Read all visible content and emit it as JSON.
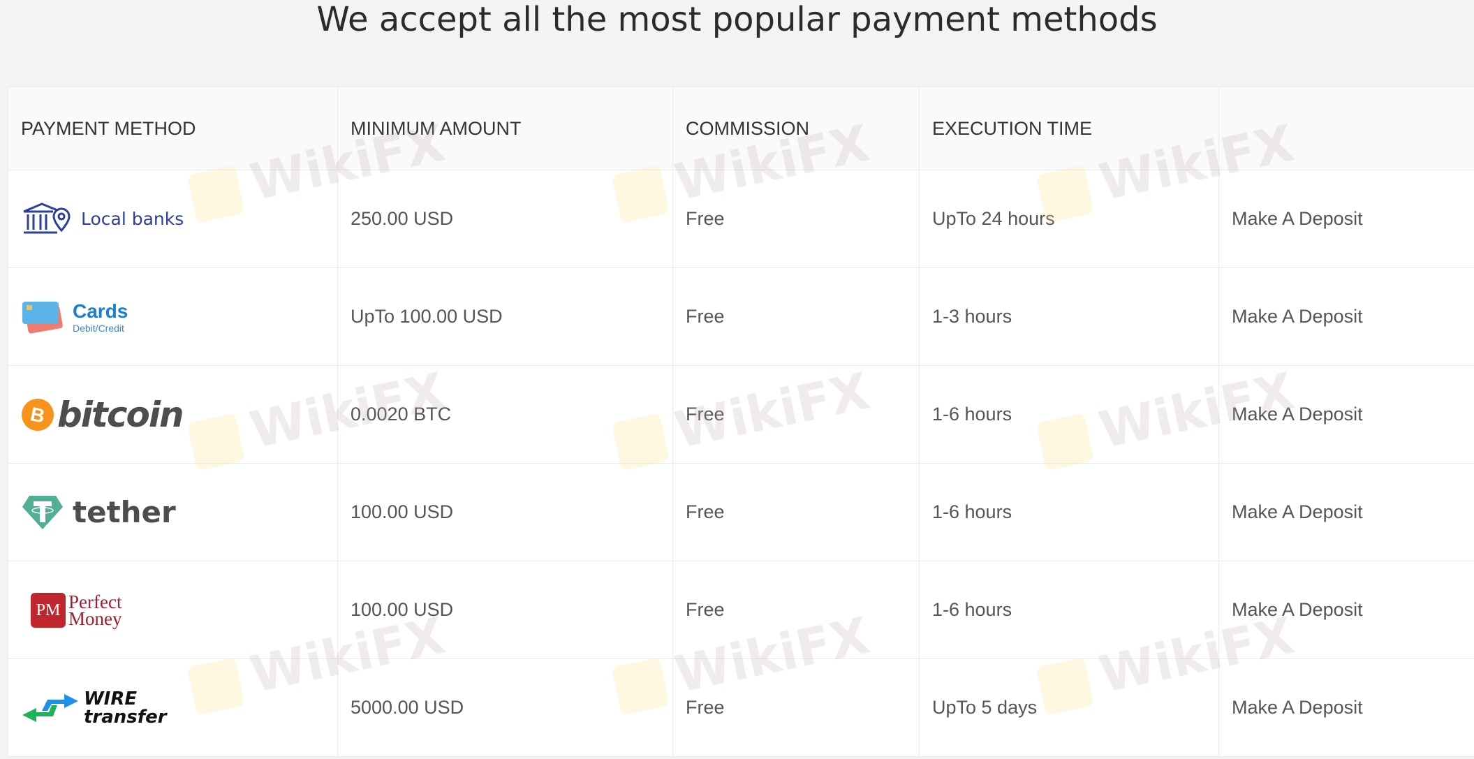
{
  "title": "We accept all the most popular payment methods",
  "headers": [
    "PAYMENT METHOD",
    "MINIMUM AMOUNT",
    "COMMISSION",
    "EXECUTION TIME",
    ""
  ],
  "rows": [
    {
      "method": "Local banks",
      "icon": "bank-icon",
      "min": "250.00 USD",
      "commission": "Free",
      "time": "UpTo 24 hours",
      "action": "Make A Deposit"
    },
    {
      "method": "Cards",
      "sub": "Debit/Credit",
      "icon": "credit-card-icon",
      "min": "UpTo 100.00 USD",
      "commission": "Free",
      "time": "1-3 hours",
      "action": "Make A Deposit"
    },
    {
      "method": "bitcoin",
      "icon": "bitcoin-icon",
      "min": "0.0020 BTC",
      "commission": "Free",
      "time": "1-6 hours",
      "action": "Make A Deposit"
    },
    {
      "method": "tether",
      "icon": "tether-icon",
      "min": "100.00 USD",
      "commission": "Free",
      "time": "1-6 hours",
      "action": "Make A Deposit"
    },
    {
      "method": "Perfect Money",
      "badge": "PM",
      "icon": "perfect-money-icon",
      "min": "100.00 USD",
      "commission": "Free",
      "time": "1-6 hours",
      "action": "Make A Deposit"
    },
    {
      "method_line1": "WIRE",
      "method_line2": "transfer",
      "icon": "wire-transfer-icon",
      "min": "5000.00 USD",
      "commission": "Free",
      "time": "UpTo 5 days",
      "action": "Make A Deposit"
    }
  ],
  "watermark": "WikiFX",
  "colors": {
    "banks": "#2b3f9e",
    "cards": "#1a7fd0",
    "bitcoin": "#f7931a",
    "tether": "#50af95",
    "pm": "#c0262d"
  }
}
